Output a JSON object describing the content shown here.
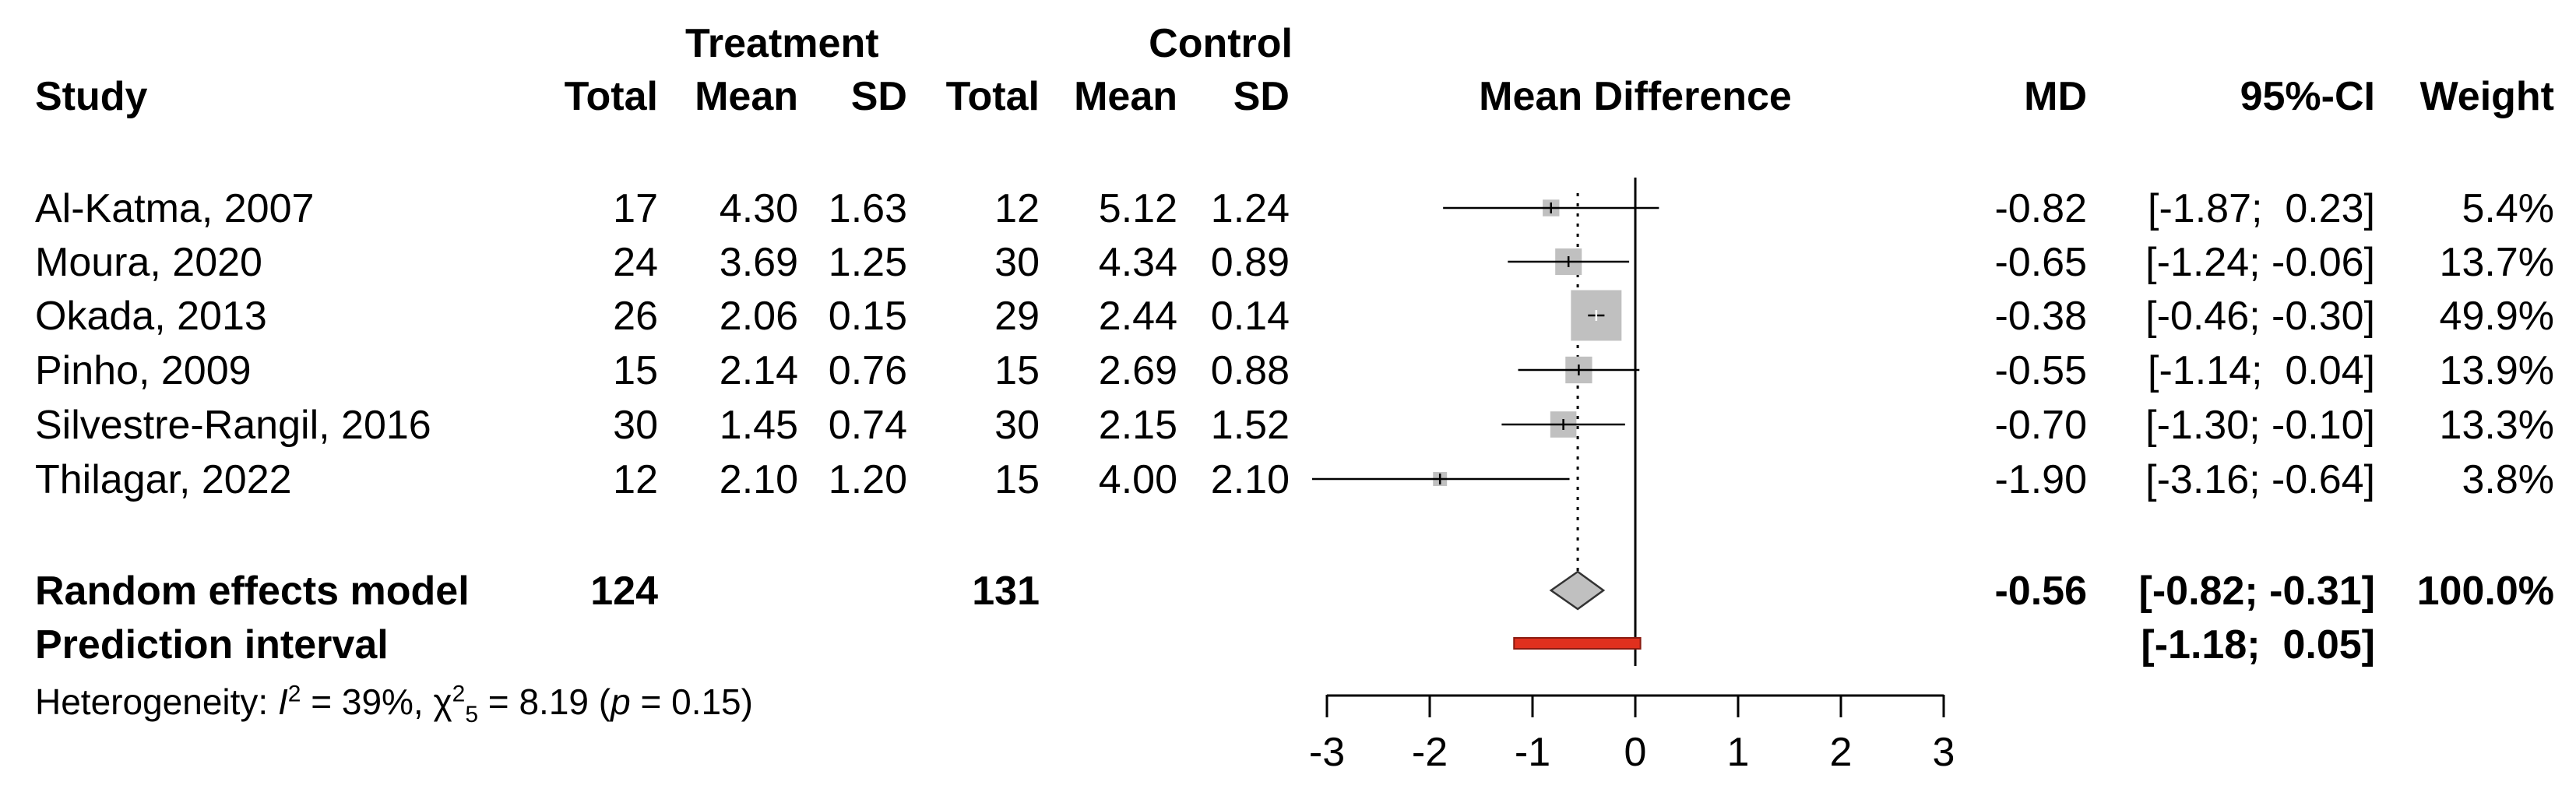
{
  "headers": {
    "treatment_group": "Treatment",
    "control_group": "Control",
    "study": "Study",
    "total": "Total",
    "mean": "Mean",
    "sd": "SD",
    "plot": "Mean Difference",
    "md": "MD",
    "ci": "95%-CI",
    "weight": "Weight"
  },
  "studies": [
    {
      "name": "Al-Katma, 2007",
      "t_total": "17",
      "t_mean": "4.30",
      "t_sd": "1.63",
      "c_total": "12",
      "c_mean": "5.12",
      "c_sd": "1.24",
      "md_text": "-0.82",
      "ci_text": "[-1.87;  0.23]",
      "weight_text": "5.4%"
    },
    {
      "name": "Moura, 2020",
      "t_total": "24",
      "t_mean": "3.69",
      "t_sd": "1.25",
      "c_total": "30",
      "c_mean": "4.34",
      "c_sd": "0.89",
      "md_text": "-0.65",
      "ci_text": "[-1.24; -0.06]",
      "weight_text": "13.7%"
    },
    {
      "name": "Okada, 2013",
      "t_total": "26",
      "t_mean": "2.06",
      "t_sd": "0.15",
      "c_total": "29",
      "c_mean": "2.44",
      "c_sd": "0.14",
      "md_text": "-0.38",
      "ci_text": "[-0.46; -0.30]",
      "weight_text": "49.9%"
    },
    {
      "name": "Pinho, 2009",
      "t_total": "15",
      "t_mean": "2.14",
      "t_sd": "0.76",
      "c_total": "15",
      "c_mean": "2.69",
      "c_sd": "0.88",
      "md_text": "-0.55",
      "ci_text": "[-1.14;  0.04]",
      "weight_text": "13.9%"
    },
    {
      "name": "Silvestre-Rangil, 2016",
      "t_total": "30",
      "t_mean": "1.45",
      "t_sd": "0.74",
      "c_total": "30",
      "c_mean": "2.15",
      "c_sd": "1.52",
      "md_text": "-0.70",
      "ci_text": "[-1.30; -0.10]",
      "weight_text": "13.3%"
    },
    {
      "name": "Thilagar, 2022",
      "t_total": "12",
      "t_mean": "2.10",
      "t_sd": "1.20",
      "c_total": "15",
      "c_mean": "4.00",
      "c_sd": "2.10",
      "md_text": "-1.90",
      "ci_text": "[-3.16; -0.64]",
      "weight_text": "3.8%"
    }
  ],
  "pooled": {
    "label": "Random effects model",
    "t_total": "124",
    "c_total": "131",
    "md_text": "-0.56",
    "ci_text": "[-0.82; -0.31]",
    "weight_text": "100.0%"
  },
  "prediction": {
    "label": "Prediction interval",
    "ci_text": "[-1.18;  0.05]"
  },
  "heterogeneity": {
    "prefix": "Heterogeneity: ",
    "i_symbol": "I",
    "i_sup": "2",
    "i_value": " = 39%, ",
    "chi_symbol": "χ",
    "chi_sup": "2",
    "chi_sub": "5",
    "chi_value": " = 8.19 (",
    "p_symbol": "p",
    "p_value": " = 0.15)"
  },
  "chart_data": {
    "type": "forest",
    "title": "Mean Difference",
    "xlim": [
      -3,
      3
    ],
    "ticks": [
      -3,
      -2,
      -1,
      0,
      1,
      2,
      3
    ],
    "tick_labels": [
      "-3",
      "-2",
      "-1",
      "0",
      "1",
      "2",
      "3"
    ],
    "null_line": 0,
    "studies": [
      {
        "name": "Al-Katma, 2007",
        "md": -0.82,
        "lower": -1.87,
        "upper": 0.23,
        "weight": 5.4
      },
      {
        "name": "Moura, 2020",
        "md": -0.65,
        "lower": -1.24,
        "upper": -0.06,
        "weight": 13.7
      },
      {
        "name": "Okada, 2013",
        "md": -0.38,
        "lower": -0.46,
        "upper": -0.3,
        "weight": 49.9
      },
      {
        "name": "Pinho, 2009",
        "md": -0.55,
        "lower": -1.14,
        "upper": 0.04,
        "weight": 13.9
      },
      {
        "name": "Silvestre-Rangil, 2016",
        "md": -0.7,
        "lower": -1.3,
        "upper": -0.1,
        "weight": 13.3
      },
      {
        "name": "Thilagar, 2022",
        "md": -1.9,
        "lower": -3.16,
        "upper": -0.64,
        "weight": 3.8
      }
    ],
    "pooled": {
      "md": -0.56,
      "lower": -0.82,
      "upper": -0.31
    },
    "prediction_interval": {
      "lower": -1.18,
      "upper": 0.05
    },
    "colors": {
      "box": "#c0c0c0",
      "diamond": "#c0c0c0",
      "prediction": "#e0301e",
      "line": "#000000"
    }
  }
}
